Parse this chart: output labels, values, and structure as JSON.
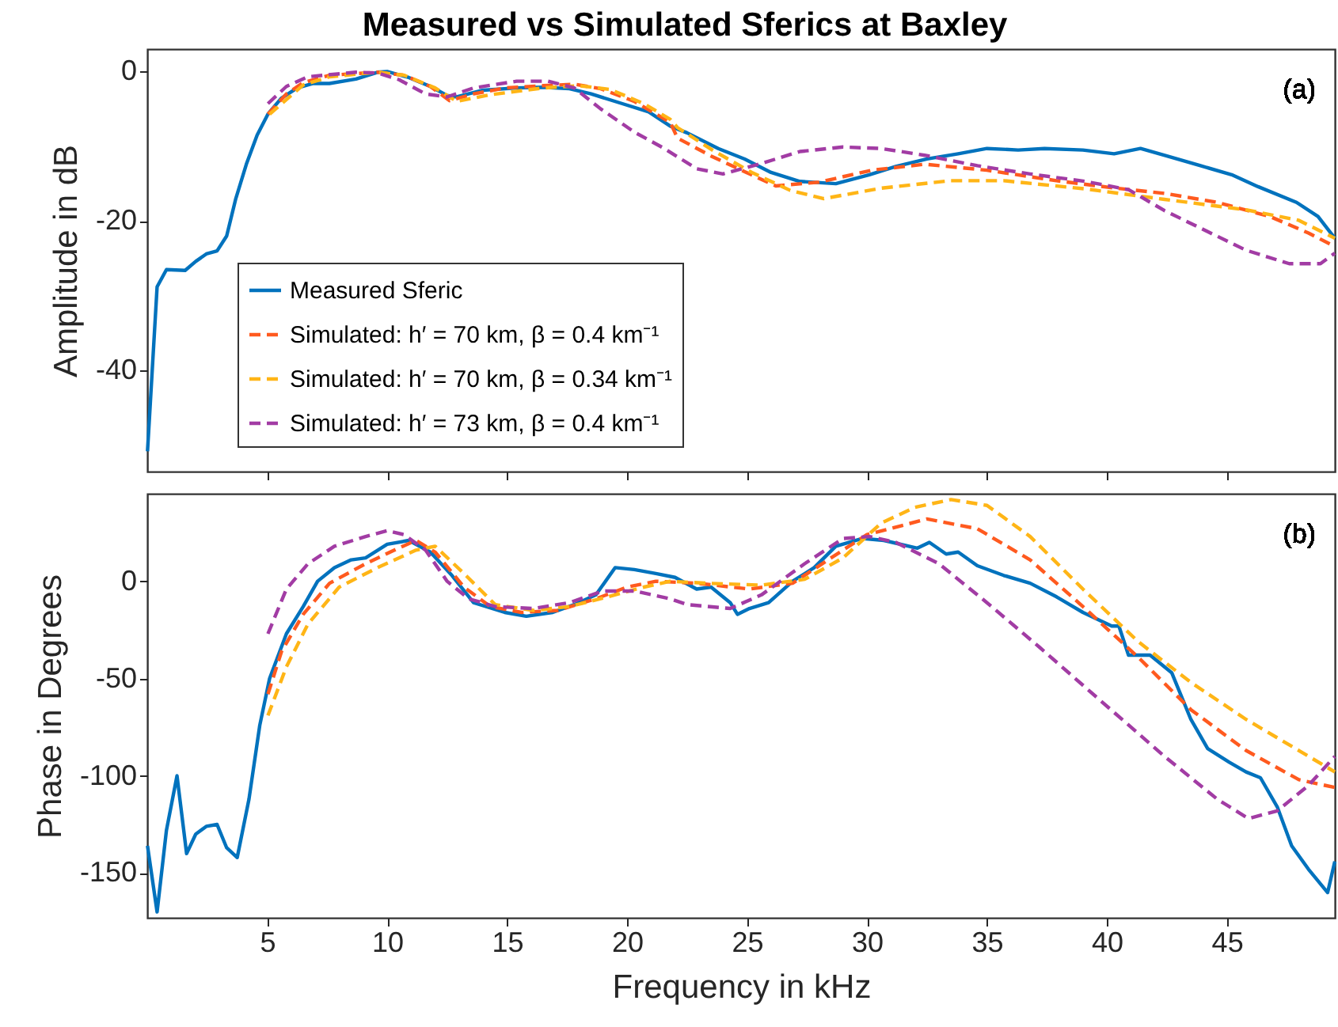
{
  "chart_data": [
    {
      "type": "line",
      "title": "Measured vs Simulated Sferics at Baxley",
      "ylabel": "Amplitude in dB",
      "xlim": [
        0,
        49.5
      ],
      "xticks": [
        5,
        10,
        15,
        20,
        25,
        30,
        35,
        40,
        45
      ],
      "ylim": [
        -53.5,
        3
      ],
      "yticks": [
        -40,
        -20,
        0
      ],
      "tick_labels": "y",
      "grid": false,
      "legend": "bottom left",
      "annotations": [
        "(a)"
      ],
      "series": [
        {
          "name": "Measured Sferic",
          "color": "#0072bd",
          "line_style": "solid",
          "x": [
            0.01,
            0.41,
            0.8,
            1.58,
            2.02,
            2.46,
            2.91,
            3.31,
            3.69,
            4.13,
            4.58,
            5.03,
            5.58,
            6.25,
            6.92,
            7.59,
            8.7,
            9.6,
            10.0,
            10.9,
            11.8,
            12.5,
            12.9,
            14.0,
            15.4,
            16.5,
            17.6,
            18.5,
            19.8,
            20.9,
            21.8,
            22.5,
            23.8,
            24.9,
            26.0,
            27.2,
            28.7,
            30.1,
            31.2,
            32.5,
            33.8,
            35.0,
            36.3,
            37.4,
            39.0,
            40.3,
            41.4,
            42.5,
            43.9,
            45.2,
            46.3,
            47.9,
            48.8,
            49.5
          ],
          "values": [
            -50.8,
            -28.8,
            -26.5,
            -26.6,
            -25.4,
            -24.4,
            -24.0,
            -22.0,
            -17.0,
            -12.4,
            -8.5,
            -5.7,
            -3.6,
            -2.2,
            -1.6,
            -1.6,
            -1.0,
            -0.1,
            0,
            -0.8,
            -2.0,
            -3.2,
            -3.4,
            -2.5,
            -2.2,
            -2.1,
            -2.3,
            -3.0,
            -4.3,
            -5.4,
            -7.3,
            -8.2,
            -10.3,
            -11.7,
            -13.5,
            -14.7,
            -15.0,
            -13.8,
            -12.7,
            -11.7,
            -11.0,
            -10.3,
            -10.5,
            -10.3,
            -10.5,
            -11.0,
            -10.3,
            -11.3,
            -12.6,
            -13.8,
            -15.4,
            -17.5,
            -19.4,
            -22.3
          ]
        },
        {
          "name": "Simulated: h′ = 70 km, β = 0.4 km⁻¹",
          "color": "#ff5a1f",
          "line_style": "dashed",
          "x": [
            5.03,
            5.8,
            6.5,
            7.6,
            9.6,
            10.7,
            11.8,
            12.6,
            13.6,
            14.9,
            16.5,
            17.8,
            18.9,
            20.3,
            21.8,
            22.1,
            23.5,
            24.9,
            26.2,
            28.0,
            30.2,
            32.4,
            35.0,
            37.9,
            40.1,
            42.4,
            44.6,
            46.8,
            48.4,
            49.5
          ],
          "values": [
            -5.7,
            -3.0,
            -1.5,
            -0.5,
            -0.1,
            -0.5,
            -2.0,
            -3.9,
            -3.0,
            -2.2,
            -1.9,
            -1.7,
            -2.3,
            -4.0,
            -6.8,
            -8.9,
            -11.3,
            -13.4,
            -15.3,
            -14.8,
            -13.2,
            -12.4,
            -13.2,
            -14.6,
            -15.5,
            -16.3,
            -17.5,
            -19.4,
            -21.6,
            -23.4
          ]
        },
        {
          "name": "Simulated: h′ = 70 km, β = 0.34 km⁻¹",
          "color": "#ffb516",
          "line_style": "dashed",
          "x": [
            5.1,
            6.5,
            7.6,
            9.6,
            10.7,
            12.0,
            12.9,
            14.3,
            16.5,
            18.0,
            19.3,
            20.7,
            21.8,
            22.1,
            23.6,
            25.2,
            26.8,
            28.2,
            30.6,
            33.5,
            35.7,
            39.1,
            42.4,
            45.8,
            48.0,
            49.5
          ],
          "values": [
            -5.7,
            -1.8,
            -0.7,
            -0.1,
            -0.5,
            -2.2,
            -4.0,
            -3.1,
            -2.2,
            -1.9,
            -2.4,
            -4.3,
            -6.4,
            -7.5,
            -10.6,
            -13.5,
            -15.9,
            -17.0,
            -15.6,
            -14.6,
            -14.6,
            -15.7,
            -17.1,
            -18.5,
            -19.9,
            -22.3
          ]
        },
        {
          "name": "Simulated: h′ = 73 km, β = 0.4 km⁻¹",
          "color": "#a23ca4",
          "line_style": "dashed",
          "x": [
            5.03,
            5.8,
            6.7,
            8.7,
            9.6,
            10.5,
            11.6,
            12.5,
            13.6,
            15.4,
            16.7,
            17.8,
            18.9,
            20.3,
            21.5,
            22.9,
            24.0,
            25.6,
            27.2,
            29.0,
            30.6,
            32.4,
            34.6,
            36.8,
            39.1,
            40.9,
            42.4,
            44.0,
            45.8,
            47.6,
            48.9,
            49.5
          ],
          "values": [
            -4.3,
            -2.0,
            -0.7,
            -0.1,
            -0.2,
            -1.1,
            -3.0,
            -3.4,
            -2.2,
            -1.3,
            -1.3,
            -2.2,
            -5.0,
            -8.1,
            -10.2,
            -13.0,
            -13.7,
            -12.3,
            -10.7,
            -10.1,
            -10.3,
            -11.2,
            -12.6,
            -13.7,
            -14.7,
            -15.8,
            -18.6,
            -21.1,
            -23.9,
            -25.7,
            -25.7,
            -24.3
          ]
        }
      ]
    },
    {
      "type": "line",
      "xlabel": "Frequency in kHz",
      "ylabel": "Phase in Degrees",
      "xlim": [
        0,
        49.5
      ],
      "xticks": [
        5,
        10,
        15,
        20,
        25,
        30,
        35,
        40,
        45
      ],
      "ylim": [
        -173,
        45
      ],
      "yticks": [
        -150,
        -100,
        -50,
        0
      ],
      "grid": false,
      "legend": false,
      "annotations": [
        "(b)"
      ],
      "series": [
        {
          "color": "#0072bd",
          "line_style": "solid",
          "x": [
            0.01,
            0.41,
            0.8,
            1.24,
            1.64,
            2.02,
            2.46,
            2.91,
            3.31,
            3.75,
            4.24,
            4.69,
            5.1,
            5.8,
            6.5,
            7.1,
            7.8,
            8.5,
            9.1,
            10.0,
            10.9,
            11.8,
            12.7,
            13.6,
            14.9,
            15.8,
            16.9,
            17.8,
            18.7,
            19.5,
            20.3,
            21.2,
            22.0,
            22.9,
            23.5,
            24.3,
            24.6,
            25.1,
            25.9,
            26.9,
            27.8,
            28.7,
            29.8,
            30.7,
            32.1,
            32.6,
            33.3,
            33.8,
            34.6,
            35.7,
            36.8,
            37.9,
            39.0,
            40.2,
            40.5,
            40.9,
            41.8,
            42.7,
            43.5,
            44.2,
            45.1,
            45.8,
            46.4,
            47.1,
            47.7,
            48.4,
            49.2,
            49.5
          ],
          "values": [
            -136,
            -170,
            -128,
            -100,
            -140,
            -130,
            -126,
            -125,
            -137,
            -142,
            -112,
            -74,
            -50,
            -27,
            -13,
            0,
            7,
            11,
            12,
            19,
            21,
            15,
            3,
            -11,
            -16,
            -18,
            -16,
            -12,
            -7,
            7,
            6,
            4,
            2,
            -4,
            -3,
            -11,
            -17,
            -14,
            -11,
            0,
            7,
            18,
            22,
            21,
            17,
            20,
            14,
            15,
            8,
            3,
            -1,
            -8,
            -16,
            -23,
            -23,
            -38,
            -38,
            -47,
            -71,
            -86,
            -93,
            -98,
            -101,
            -116,
            -136,
            -148,
            -160,
            -144
          ]
        },
        {
          "color": "#ff5a1f",
          "line_style": "dashed",
          "x": [
            5.03,
            5.6,
            6.5,
            7.6,
            9.1,
            10.3,
            11.2,
            12.0,
            13.2,
            14.3,
            15.6,
            17.1,
            18.7,
            20.0,
            21.2,
            22.9,
            25.1,
            26.9,
            28.5,
            30.0,
            32.5,
            34.6,
            36.8,
            39.0,
            41.3,
            43.5,
            45.8,
            48.0,
            49.5
          ],
          "values": [
            -58,
            -36,
            -17,
            -1,
            9,
            16,
            21,
            15,
            -3,
            -13,
            -16,
            -15,
            -9,
            -3,
            0,
            -1,
            -4,
            -1,
            12,
            24,
            32,
            27,
            11,
            -13,
            -39,
            -66,
            -87,
            -102,
            -106
          ]
        },
        {
          "color": "#ffb516",
          "line_style": "dashed",
          "x": [
            5.03,
            5.8,
            6.7,
            8.0,
            9.6,
            11.2,
            12.0,
            13.2,
            14.5,
            16.1,
            17.6,
            19.2,
            20.7,
            21.8,
            23.3,
            25.6,
            27.4,
            29.0,
            30.6,
            32.0,
            33.5,
            35.0,
            36.8,
            39.0,
            41.3,
            43.5,
            45.8,
            48.0,
            49.5
          ],
          "values": [
            -69,
            -44,
            -22,
            -3,
            7,
            16,
            18,
            4,
            -12,
            -15,
            -13,
            -8,
            -3,
            0,
            -1,
            -2,
            1,
            12,
            30,
            38,
            42,
            39,
            23,
            -4,
            -31,
            -52,
            -71,
            -87,
            -98
          ]
        },
        {
          "color": "#a23ca4",
          "line_style": "dashed",
          "x": [
            5.03,
            5.8,
            6.7,
            7.8,
            9.1,
            10.0,
            10.7,
            11.6,
            12.5,
            13.4,
            14.5,
            16.1,
            17.6,
            19.0,
            20.3,
            21.8,
            22.5,
            24.3,
            25.6,
            27.4,
            29.0,
            30.1,
            31.2,
            33.0,
            35.0,
            37.2,
            39.7,
            42.4,
            44.6,
            45.9,
            47.1,
            48.4,
            49.5
          ],
          "values": [
            -27,
            -4,
            9,
            18,
            23,
            26,
            24,
            16,
            0,
            -9,
            -13,
            -14,
            -11,
            -5,
            -5,
            -9,
            -12,
            -14,
            -7,
            9,
            22,
            23,
            20,
            9,
            -11,
            -34,
            -61,
            -90,
            -112,
            -122,
            -118,
            -105,
            -90
          ]
        }
      ]
    }
  ]
}
